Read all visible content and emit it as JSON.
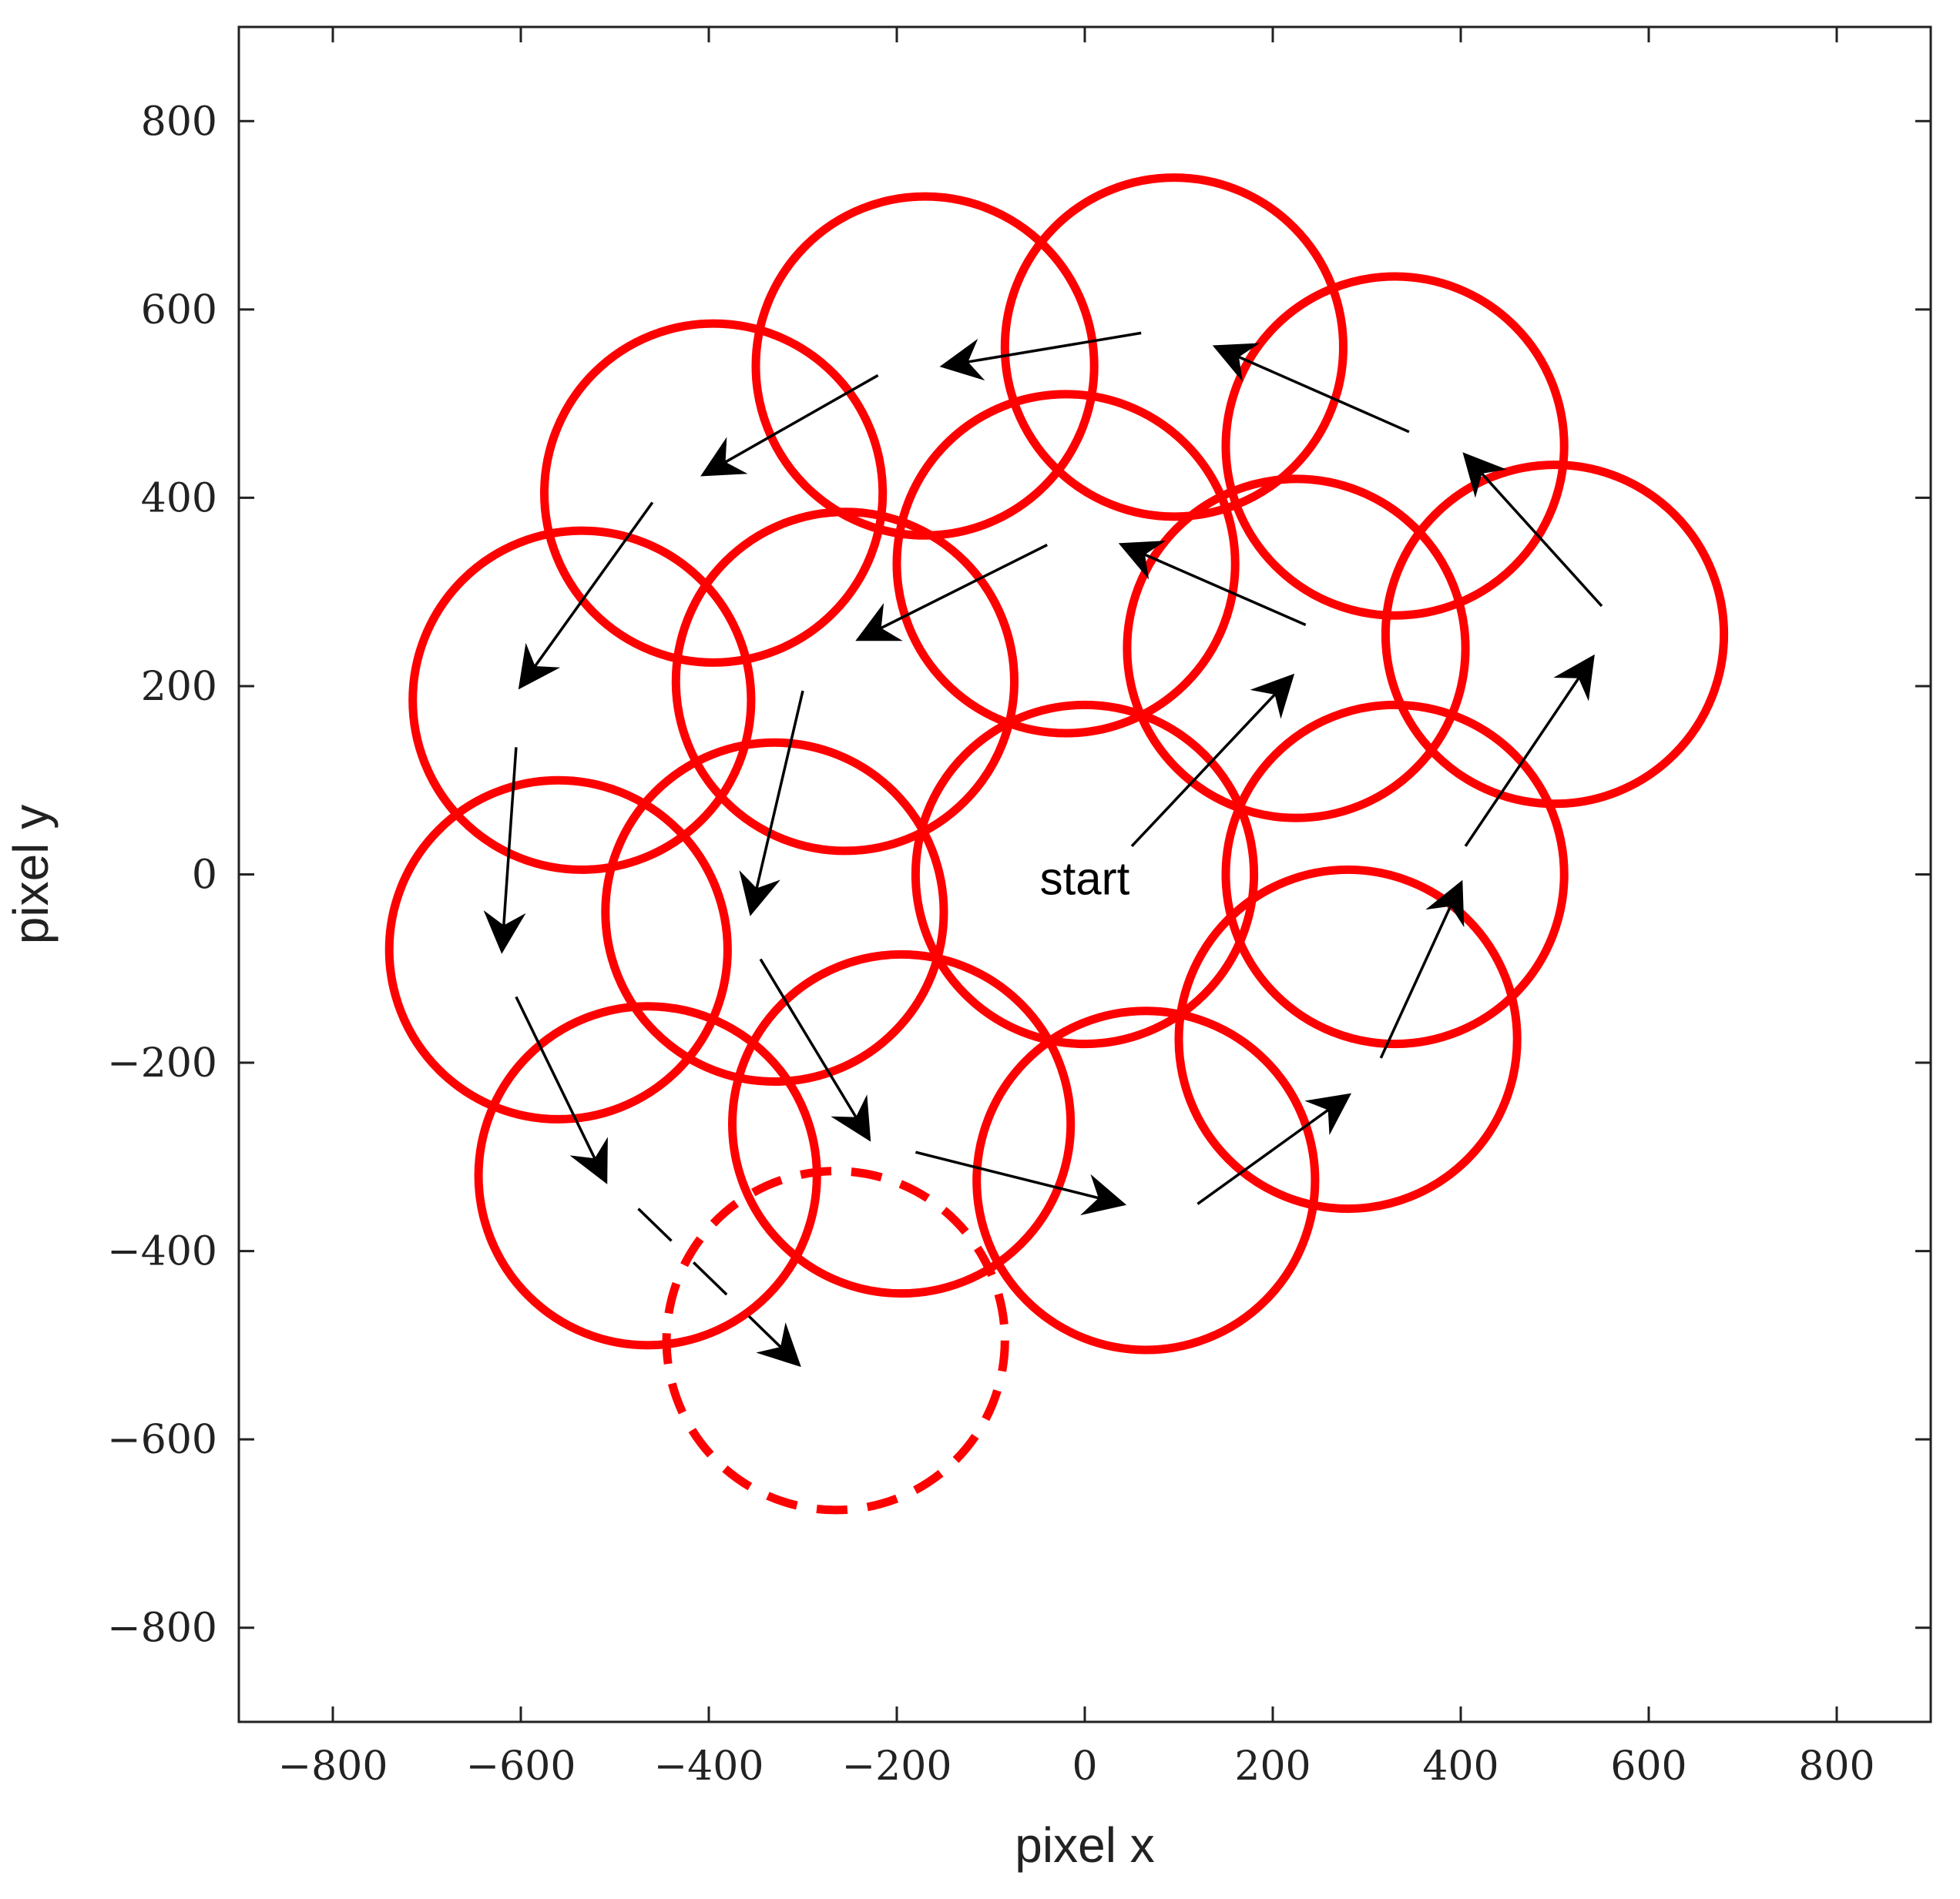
{
  "chart_data": {
    "type": "scatter",
    "xlabel": "pixel x",
    "ylabel": "pixel y",
    "xlim": [
      -900,
      900
    ],
    "ylim": [
      -900,
      900
    ],
    "xticks": [
      -800,
      -600,
      -400,
      -200,
      0,
      200,
      400,
      600,
      800
    ],
    "yticks": [
      -800,
      -600,
      -400,
      -200,
      0,
      200,
      400,
      600,
      800
    ],
    "xtick_labels": [
      "−800",
      "−600",
      "−400",
      "−200",
      "0",
      "200",
      "400",
      "600",
      "800"
    ],
    "ytick_labels": [
      "−800",
      "−600",
      "−400",
      "−200",
      "0",
      "200",
      "400",
      "600",
      "800"
    ],
    "grid": false,
    "circle_radius": 180,
    "circle_color": "#ff0000",
    "arrow_color": "#000000",
    "circles": [
      {
        "x": 0,
        "y": 0,
        "style": "solid"
      },
      {
        "x": 225,
        "y": 240,
        "style": "solid"
      },
      {
        "x": 500,
        "y": 255,
        "style": "solid"
      },
      {
        "x": 330,
        "y": 455,
        "style": "solid"
      },
      {
        "x": 95,
        "y": 560,
        "style": "solid"
      },
      {
        "x": -170,
        "y": 540,
        "style": "solid"
      },
      {
        "x": -395,
        "y": 405,
        "style": "solid"
      },
      {
        "x": -535,
        "y": 185,
        "style": "solid"
      },
      {
        "x": -560,
        "y": -80,
        "style": "solid"
      },
      {
        "x": -465,
        "y": -320,
        "style": "solid"
      },
      {
        "x": -265,
        "y": -495,
        "style": "dashed"
      },
      {
        "x": -20,
        "y": 330,
        "style": "solid"
      },
      {
        "x": -255,
        "y": 205,
        "style": "solid"
      },
      {
        "x": -330,
        "y": -40,
        "style": "solid"
      },
      {
        "x": -195,
        "y": -265,
        "style": "solid"
      },
      {
        "x": 65,
        "y": -325,
        "style": "solid"
      },
      {
        "x": 280,
        "y": -175,
        "style": "solid"
      },
      {
        "x": 330,
        "y": 0,
        "style": "solid"
      }
    ],
    "arrows": [
      {
        "x1": 50,
        "y1": 30,
        "x2": 220,
        "y2": 210,
        "style": "solid"
      },
      {
        "x1": 235,
        "y1": 265,
        "x2": 40,
        "y2": 350,
        "style": "solid"
      },
      {
        "x1": 550,
        "y1": 285,
        "x2": 405,
        "y2": 445,
        "style": "solid"
      },
      {
        "x1": 345,
        "y1": 470,
        "x2": 140,
        "y2": 560,
        "style": "solid"
      },
      {
        "x1": 60,
        "y1": 575,
        "x2": -150,
        "y2": 540,
        "style": "solid"
      },
      {
        "x1": -220,
        "y1": 530,
        "x2": -405,
        "y2": 425,
        "style": "solid"
      },
      {
        "x1": -460,
        "y1": 395,
        "x2": -600,
        "y2": 200,
        "style": "solid"
      },
      {
        "x1": -605,
        "y1": 135,
        "x2": -620,
        "y2": -80,
        "style": "solid"
      },
      {
        "x1": -605,
        "y1": -130,
        "x2": -510,
        "y2": -325,
        "style": "solid"
      },
      {
        "x1": -475,
        "y1": -355,
        "x2": -305,
        "y2": -520,
        "style": "dashed"
      },
      {
        "x1": -40,
        "y1": 350,
        "x2": -240,
        "y2": 250,
        "style": "solid"
      },
      {
        "x1": -300,
        "y1": 195,
        "x2": -355,
        "y2": -40,
        "style": "solid"
      },
      {
        "x1": -345,
        "y1": -90,
        "x2": -230,
        "y2": -280,
        "style": "solid"
      },
      {
        "x1": -180,
        "y1": -295,
        "x2": 40,
        "y2": -350,
        "style": "solid"
      },
      {
        "x1": 120,
        "y1": -350,
        "x2": 280,
        "y2": -235,
        "style": "solid"
      },
      {
        "x1": 315,
        "y1": -195,
        "x2": 400,
        "y2": -10,
        "style": "solid"
      },
      {
        "x1": 405,
        "y1": 30,
        "x2": 540,
        "y2": 230,
        "style": "solid"
      }
    ],
    "annotations": [
      {
        "text": "start",
        "x": 0,
        "y": -5
      }
    ]
  }
}
